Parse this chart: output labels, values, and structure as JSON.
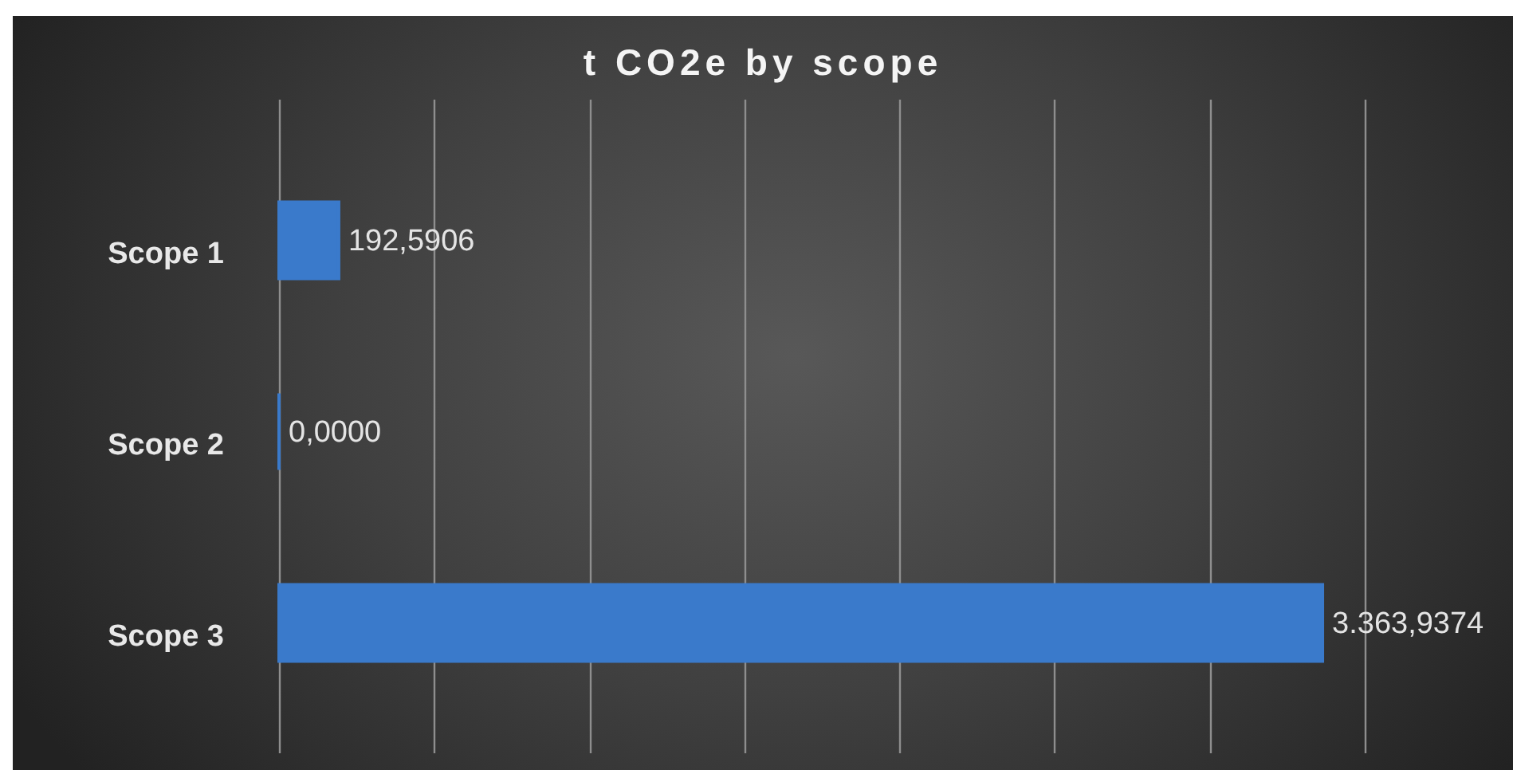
{
  "chart_data": {
    "type": "bar",
    "orientation": "horizontal",
    "title": "t CO2e by scope",
    "categories": [
      "Scope 1",
      "Scope 2",
      "Scope 3"
    ],
    "values": [
      192.5906,
      0,
      3363.9374
    ],
    "value_labels": [
      "192,5906",
      "0,0000",
      "3.363,9374"
    ],
    "color": "#3a7acb",
    "xlim": [
      0,
      3500
    ],
    "xticks": [
      {
        "value": 0,
        "label": null
      },
      {
        "value": 500,
        "label": null
      },
      {
        "value": 1000,
        "label": null
      },
      {
        "value": 1500,
        "label": null
      },
      {
        "value": 2000,
        "label": null
      },
      {
        "value": 2500,
        "label": null
      },
      {
        "value": 3000,
        "label": null
      },
      {
        "value": 3500,
        "label": null
      }
    ],
    "grid": "x",
    "tick_labels": "y"
  }
}
